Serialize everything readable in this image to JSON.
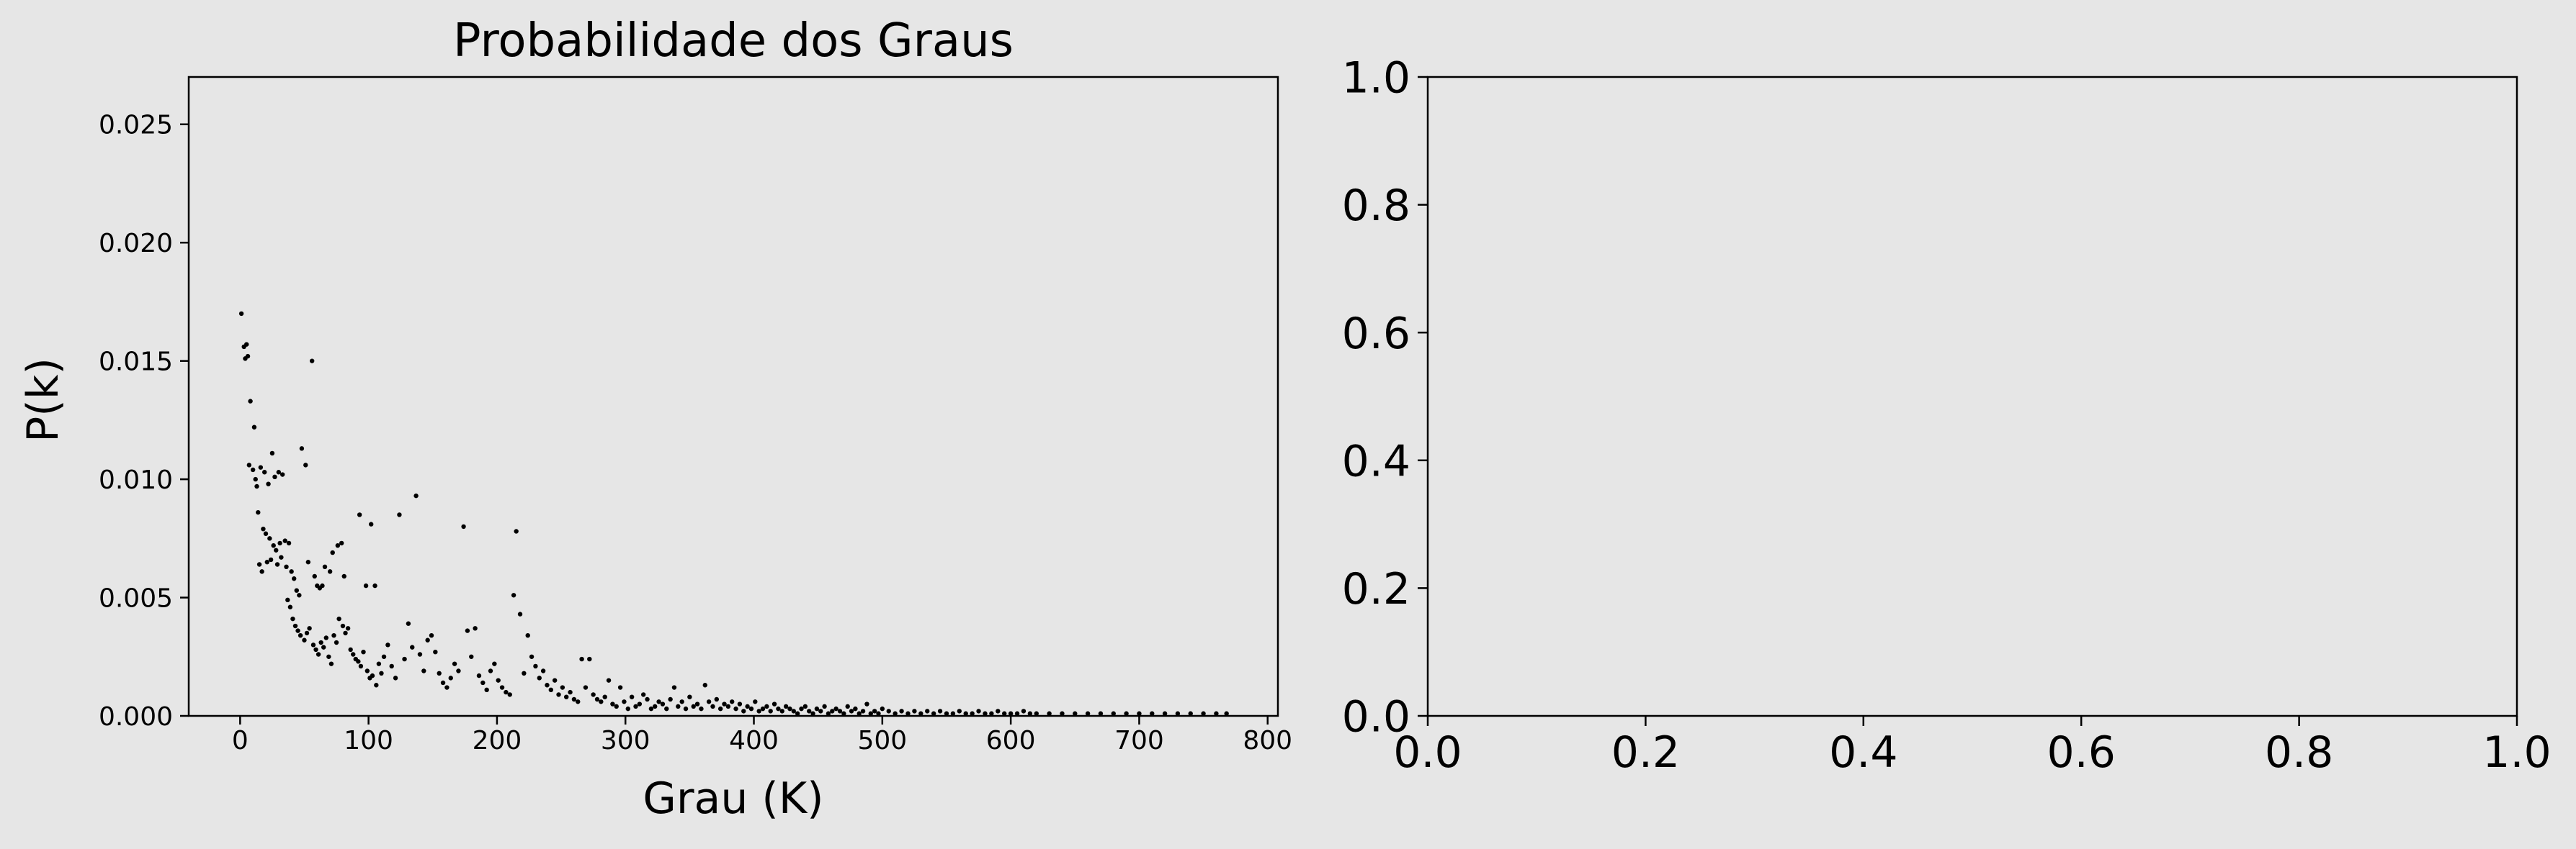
{
  "chart_data": [
    {
      "type": "scatter",
      "title": "Probabilidade dos Graus",
      "xlabel": "Grau (K)",
      "ylabel": "P(k)",
      "xlim": [
        -40,
        808
      ],
      "ylim": [
        0,
        0.027
      ],
      "xticks": [
        0,
        100,
        200,
        300,
        400,
        500,
        600,
        700,
        800
      ],
      "yticks": [
        0.0,
        0.005,
        0.01,
        0.015,
        0.02,
        0.025
      ],
      "xtick_labels": [
        "0",
        "100",
        "200",
        "300",
        "400",
        "500",
        "600",
        "700",
        "800"
      ],
      "ytick_labels": [
        "0.000",
        "0.005",
        "0.010",
        "0.015",
        "0.020",
        "0.025"
      ],
      "marker_color": "#000000",
      "points": [
        [
          1,
          0.017
        ],
        [
          3,
          0.0156
        ],
        [
          5,
          0.0157
        ],
        [
          4,
          0.0151
        ],
        [
          6,
          0.0152
        ],
        [
          8,
          0.0133
        ],
        [
          11,
          0.0122
        ],
        [
          7,
          0.0106
        ],
        [
          10,
          0.0104
        ],
        [
          12,
          0.01
        ],
        [
          13,
          0.0097
        ],
        [
          16,
          0.0105
        ],
        [
          19,
          0.0103
        ],
        [
          22,
          0.0098
        ],
        [
          25,
          0.0111
        ],
        [
          27,
          0.0101
        ],
        [
          30,
          0.0103
        ],
        [
          33,
          0.0102
        ],
        [
          14,
          0.0086
        ],
        [
          18,
          0.0079
        ],
        [
          20,
          0.0077
        ],
        [
          23,
          0.0075
        ],
        [
          26,
          0.0072
        ],
        [
          28,
          0.007
        ],
        [
          31,
          0.0073
        ],
        [
          35,
          0.0074
        ],
        [
          38,
          0.0073
        ],
        [
          15,
          0.0064
        ],
        [
          17,
          0.0061
        ],
        [
          21,
          0.0065
        ],
        [
          24,
          0.0066
        ],
        [
          29,
          0.0064
        ],
        [
          32,
          0.0067
        ],
        [
          36,
          0.0063
        ],
        [
          40,
          0.0061
        ],
        [
          42,
          0.0058
        ],
        [
          44,
          0.0053
        ],
        [
          46,
          0.0051
        ],
        [
          48,
          0.0113
        ],
        [
          51,
          0.0106
        ],
        [
          56,
          0.015
        ],
        [
          53,
          0.0065
        ],
        [
          58,
          0.0059
        ],
        [
          60,
          0.0055
        ],
        [
          62,
          0.0054
        ],
        [
          64,
          0.0055
        ],
        [
          66,
          0.0063
        ],
        [
          70,
          0.0061
        ],
        [
          72,
          0.0069
        ],
        [
          76,
          0.0072
        ],
        [
          79,
          0.0073
        ],
        [
          81,
          0.0059
        ],
        [
          93,
          0.0085
        ],
        [
          102,
          0.0081
        ],
        [
          98,
          0.0055
        ],
        [
          105,
          0.0055
        ],
        [
          37,
          0.0049
        ],
        [
          39,
          0.0046
        ],
        [
          41,
          0.0041
        ],
        [
          43,
          0.0038
        ],
        [
          45,
          0.0036
        ],
        [
          47,
          0.0034
        ],
        [
          50,
          0.0032
        ],
        [
          52,
          0.0035
        ],
        [
          54,
          0.0037
        ],
        [
          57,
          0.003
        ],
        [
          59,
          0.0028
        ],
        [
          61,
          0.0026
        ],
        [
          63,
          0.0031
        ],
        [
          65,
          0.0029
        ],
        [
          67,
          0.0033
        ],
        [
          69,
          0.0025
        ],
        [
          71,
          0.0022
        ],
        [
          73,
          0.0034
        ],
        [
          75,
          0.0031
        ],
        [
          77,
          0.0041
        ],
        [
          80,
          0.0038
        ],
        [
          82,
          0.0035
        ],
        [
          84,
          0.0037
        ],
        [
          86,
          0.0028
        ],
        [
          88,
          0.0026
        ],
        [
          90,
          0.0024
        ],
        [
          92,
          0.0023
        ],
        [
          94,
          0.0021
        ],
        [
          96,
          0.0027
        ],
        [
          99,
          0.0019
        ],
        [
          101,
          0.0016
        ],
        [
          103,
          0.0017
        ],
        [
          106,
          0.0013
        ],
        [
          108,
          0.0022
        ],
        [
          110,
          0.0018
        ],
        [
          112,
          0.0025
        ],
        [
          115,
          0.003
        ],
        [
          118,
          0.0021
        ],
        [
          121,
          0.0016
        ],
        [
          124,
          0.0085
        ],
        [
          128,
          0.0024
        ],
        [
          131,
          0.0039
        ],
        [
          134,
          0.0029
        ],
        [
          137,
          0.0093
        ],
        [
          140,
          0.0026
        ],
        [
          143,
          0.0019
        ],
        [
          146,
          0.0032
        ],
        [
          149,
          0.0034
        ],
        [
          152,
          0.0027
        ],
        [
          155,
          0.0018
        ],
        [
          158,
          0.0014
        ],
        [
          161,
          0.0012
        ],
        [
          164,
          0.0016
        ],
        [
          167,
          0.0022
        ],
        [
          170,
          0.0019
        ],
        [
          174,
          0.008
        ],
        [
          177,
          0.0036
        ],
        [
          180,
          0.0025
        ],
        [
          183,
          0.0037
        ],
        [
          186,
          0.0017
        ],
        [
          189,
          0.0014
        ],
        [
          192,
          0.0011
        ],
        [
          195,
          0.0019
        ],
        [
          198,
          0.0022
        ],
        [
          201,
          0.0015
        ],
        [
          204,
          0.0012
        ],
        [
          207,
          0.001
        ],
        [
          210,
          0.0009
        ],
        [
          213,
          0.0051
        ],
        [
          215,
          0.0078
        ],
        [
          218,
          0.0043
        ],
        [
          221,
          0.0018
        ],
        [
          224,
          0.0034
        ],
        [
          227,
          0.0025
        ],
        [
          230,
          0.0021
        ],
        [
          233,
          0.0016
        ],
        [
          236,
          0.0019
        ],
        [
          239,
          0.0013
        ],
        [
          242,
          0.0011
        ],
        [
          245,
          0.0015
        ],
        [
          248,
          0.0009
        ],
        [
          251,
          0.0012
        ],
        [
          254,
          0.0008
        ],
        [
          257,
          0.001
        ],
        [
          260,
          0.0007
        ],
        [
          263,
          0.0006
        ],
        [
          266,
          0.0024
        ],
        [
          269,
          0.0012
        ],
        [
          272,
          0.0024
        ],
        [
          275,
          0.0009
        ],
        [
          278,
          0.0007
        ],
        [
          281,
          0.0006
        ],
        [
          284,
          0.0008
        ],
        [
          287,
          0.0015
        ],
        [
          290,
          0.0005
        ],
        [
          293,
          0.0004
        ],
        [
          296,
          0.0012
        ],
        [
          299,
          0.0006
        ],
        [
          302,
          0.0003
        ],
        [
          305,
          0.0008
        ],
        [
          308,
          0.0004
        ],
        [
          311,
          0.0005
        ],
        [
          314,
          0.0009
        ],
        [
          317,
          0.0007
        ],
        [
          320,
          0.0003
        ],
        [
          323,
          0.0004
        ],
        [
          326,
          0.0006
        ],
        [
          329,
          0.0005
        ],
        [
          332,
          0.0003
        ],
        [
          335,
          0.0007
        ],
        [
          338,
          0.0012
        ],
        [
          341,
          0.0004
        ],
        [
          344,
          0.0006
        ],
        [
          347,
          0.0003
        ],
        [
          350,
          0.0008
        ],
        [
          353,
          0.0004
        ],
        [
          356,
          0.0005
        ],
        [
          359,
          0.0003
        ],
        [
          362,
          0.0013
        ],
        [
          365,
          0.0006
        ],
        [
          368,
          0.0004
        ],
        [
          371,
          0.0007
        ],
        [
          374,
          0.0003
        ],
        [
          377,
          0.0005
        ],
        [
          380,
          0.0004
        ],
        [
          383,
          0.0006
        ],
        [
          386,
          0.0003
        ],
        [
          389,
          0.0005
        ],
        [
          392,
          0.0002
        ],
        [
          395,
          0.0004
        ],
        [
          398,
          0.0003
        ],
        [
          401,
          0.0006
        ],
        [
          404,
          0.0002
        ],
        [
          407,
          0.0003
        ],
        [
          410,
          0.0004
        ],
        [
          413,
          0.0002
        ],
        [
          416,
          0.0005
        ],
        [
          419,
          0.0003
        ],
        [
          422,
          0.0002
        ],
        [
          425,
          0.0004
        ],
        [
          428,
          0.0003
        ],
        [
          431,
          0.0002
        ],
        [
          434,
          0.0001
        ],
        [
          437,
          0.0003
        ],
        [
          440,
          0.0004
        ],
        [
          443,
          0.0002
        ],
        [
          446,
          0.0001
        ],
        [
          449,
          0.0003
        ],
        [
          452,
          0.0002
        ],
        [
          455,
          0.0004
        ],
        [
          458,
          0.0001
        ],
        [
          461,
          0.0002
        ],
        [
          464,
          0.0003
        ],
        [
          467,
          0.0002
        ],
        [
          470,
          0.0001
        ],
        [
          473,
          0.0004
        ],
        [
          476,
          0.0002
        ],
        [
          479,
          0.0003
        ],
        [
          482,
          0.0001
        ],
        [
          485,
          0.0002
        ],
        [
          488,
          0.0005
        ],
        [
          491,
          0.0001
        ],
        [
          494,
          0.0002
        ],
        [
          497,
          0.0001
        ],
        [
          500,
          0.0003
        ],
        [
          505,
          0.0002
        ],
        [
          510,
          0.0001
        ],
        [
          515,
          0.0002
        ],
        [
          520,
          0.0001
        ],
        [
          525,
          0.0002
        ],
        [
          530,
          0.0001
        ],
        [
          535,
          0.0002
        ],
        [
          540,
          0.0001
        ],
        [
          545,
          0.0002
        ],
        [
          550,
          0.0001
        ],
        [
          555,
          0.0001
        ],
        [
          560,
          0.0002
        ],
        [
          565,
          0.0001
        ],
        [
          570,
          0.0001
        ],
        [
          575,
          0.0002
        ],
        [
          580,
          0.0001
        ],
        [
          585,
          0.0001
        ],
        [
          590,
          0.0002
        ],
        [
          595,
          0.0001
        ],
        [
          600,
          0.0001
        ],
        [
          605,
          0.0001
        ],
        [
          610,
          0.0002
        ],
        [
          615,
          0.0001
        ],
        [
          620,
          0.0001
        ],
        [
          630,
          0.0001
        ],
        [
          640,
          0.0001
        ],
        [
          650,
          0.0001
        ],
        [
          660,
          0.0001
        ],
        [
          670,
          0.0001
        ],
        [
          680,
          0.0001
        ],
        [
          690,
          0.0001
        ],
        [
          700,
          0.0001
        ],
        [
          710,
          0.0001
        ],
        [
          720,
          0.0001
        ],
        [
          730,
          0.0001
        ],
        [
          740,
          0.0001
        ],
        [
          750,
          0.0001
        ],
        [
          760,
          0.0001
        ],
        [
          768,
          0.0001
        ]
      ]
    },
    {
      "type": "scatter",
      "title": "",
      "xlabel": "",
      "ylabel": "",
      "xlim": [
        0,
        1
      ],
      "ylim": [
        0,
        1
      ],
      "xticks": [
        0.0,
        0.2,
        0.4,
        0.6,
        0.8,
        1.0
      ],
      "yticks": [
        0.0,
        0.2,
        0.4,
        0.6,
        0.8,
        1.0
      ],
      "xtick_labels": [
        "0.0",
        "0.2",
        "0.4",
        "0.6",
        "0.8",
        "1.0"
      ],
      "ytick_labels": [
        "0.0",
        "0.2",
        "0.4",
        "0.6",
        "0.8",
        "1.0"
      ],
      "points": []
    }
  ]
}
